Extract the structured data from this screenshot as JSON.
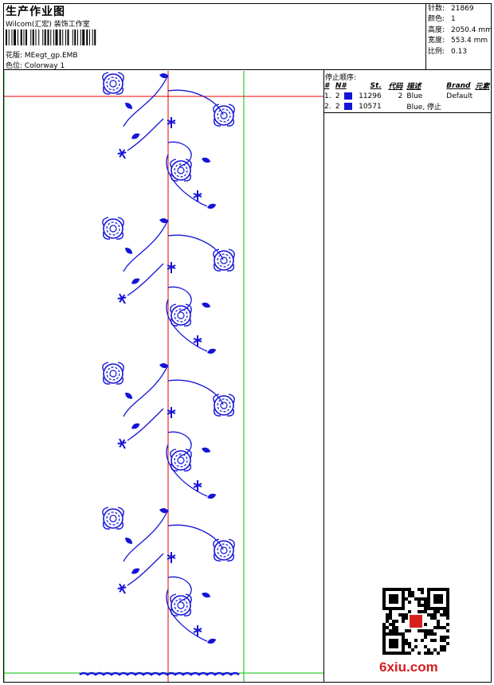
{
  "header": {
    "title": "生产作业图",
    "studio": "Wilcom(汇宏) 装饰工作室",
    "design_label": "花版:",
    "design_value": "MEegt_gp.EMB",
    "colorway_label": "色位:",
    "colorway_value": "Colorway 1"
  },
  "stats": [
    {
      "label": "针数:",
      "value": "21869"
    },
    {
      "label": "颜色:",
      "value": "1"
    },
    {
      "label": "高度:",
      "value": "2050.4 mm"
    },
    {
      "label": "宽度:",
      "value": "553.4 mm"
    },
    {
      "label": "比例:",
      "value": "0.13"
    }
  ],
  "stop_sequence": {
    "title": "停止顺序:",
    "headers": [
      "#",
      "N#",
      "St.",
      "代码",
      "描述",
      "Brand",
      "元素"
    ],
    "rows": [
      {
        "index": "1.",
        "n": "2",
        "color": "#1414d8",
        "stitches": "11296",
        "code": "2",
        "desc": "Blue",
        "brand": "Default",
        "element": ""
      },
      {
        "index": "2.",
        "n": "2",
        "color": "#1414d8",
        "stitches": "10571",
        "code": "",
        "desc": "Blue, 停止",
        "brand": "",
        "element": ""
      }
    ]
  },
  "colors": {
    "thread": "#1414d8",
    "guide_red": "#e00000",
    "guide_green": "#00c000"
  },
  "watermark": "6xiu.com"
}
